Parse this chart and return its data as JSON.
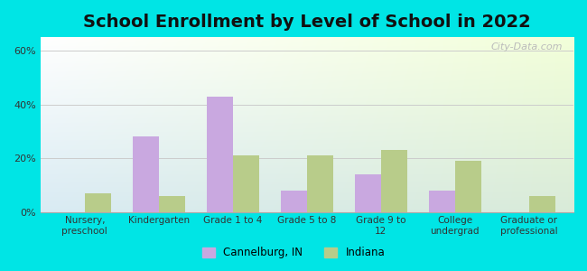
{
  "title": "School Enrollment by Level of School in 2022",
  "categories": [
    "Nursery,\npreschool",
    "Kindergarten",
    "Grade 1 to 4",
    "Grade 5 to 8",
    "Grade 9 to\n12",
    "College\nundergrad",
    "Graduate or\nprofessional"
  ],
  "cannelburg": [
    0,
    28,
    43,
    8,
    14,
    8,
    0
  ],
  "indiana": [
    7,
    6,
    21,
    21,
    23,
    19,
    6
  ],
  "cannelburg_color": "#c9a8e0",
  "indiana_color": "#b8cc8a",
  "background_color": "#00e5e5",
  "ylim": [
    0,
    65
  ],
  "yticks": [
    0,
    20,
    40,
    60
  ],
  "ytick_labels": [
    "0%",
    "20%",
    "40%",
    "60%"
  ],
  "bar_width": 0.35,
  "title_fontsize": 14,
  "legend_labels": [
    "Cannelburg, IN",
    "Indiana"
  ],
  "watermark": "City-Data.com"
}
